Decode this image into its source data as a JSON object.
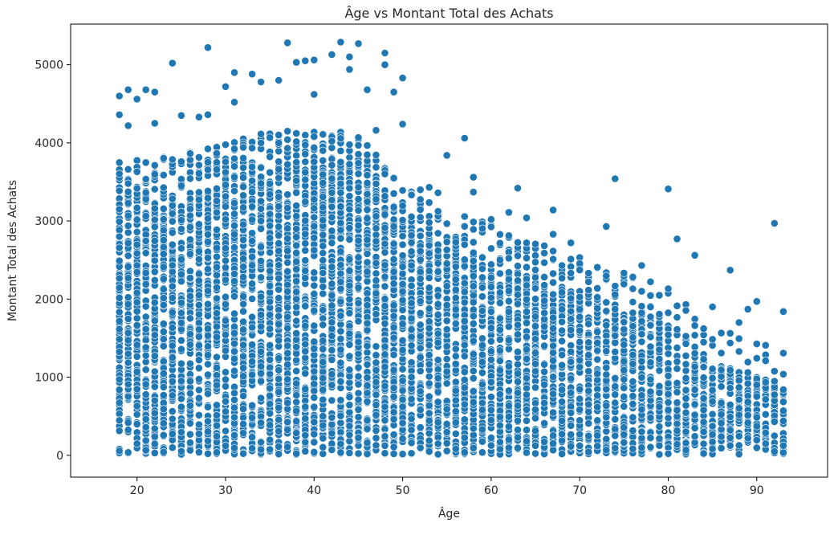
{
  "chart_data": {
    "type": "scatter",
    "title": "Âge vs Montant Total des Achats",
    "xlabel": "Âge",
    "ylabel": "Montant Total des Achats",
    "xlim": [
      12.5,
      98
    ],
    "ylim": [
      -280,
      5520
    ],
    "xticks": [
      20,
      30,
      40,
      50,
      60,
      70,
      80,
      90
    ],
    "yticks": [
      0,
      1000,
      2000,
      3000,
      4000,
      5000
    ],
    "grid": false,
    "legend": "none",
    "marker_color": "#1f77b4",
    "marker_edge_color": "#ffffff",
    "density_profile": [
      {
        "age": 18,
        "max_dense": 3300
      },
      {
        "age": 25,
        "max_dense": 3400
      },
      {
        "age": 35,
        "max_dense": 3700
      },
      {
        "age": 45,
        "max_dense": 3700
      },
      {
        "age": 50,
        "max_dense": 3000
      },
      {
        "age": 55,
        "max_dense": 2700
      },
      {
        "age": 60,
        "max_dense": 2500
      },
      {
        "age": 70,
        "max_dense": 2100
      },
      {
        "age": 80,
        "max_dense": 1700
      },
      {
        "age": 85,
        "max_dense": 1200
      },
      {
        "age": 93,
        "max_dense": 900
      }
    ],
    "outliers": [
      {
        "x": 18,
        "y": 4600
      },
      {
        "x": 18,
        "y": 4360
      },
      {
        "x": 19,
        "y": 4680
      },
      {
        "x": 19,
        "y": 4220
      },
      {
        "x": 20,
        "y": 4560
      },
      {
        "x": 21,
        "y": 4680
      },
      {
        "x": 22,
        "y": 4650
      },
      {
        "x": 22,
        "y": 4250
      },
      {
        "x": 24,
        "y": 5020
      },
      {
        "x": 25,
        "y": 4350
      },
      {
        "x": 27,
        "y": 4330
      },
      {
        "x": 28,
        "y": 5220
      },
      {
        "x": 28,
        "y": 4360
      },
      {
        "x": 30,
        "y": 4720
      },
      {
        "x": 31,
        "y": 4900
      },
      {
        "x": 31,
        "y": 4520
      },
      {
        "x": 33,
        "y": 4880
      },
      {
        "x": 34,
        "y": 4780
      },
      {
        "x": 36,
        "y": 4800
      },
      {
        "x": 37,
        "y": 5280
      },
      {
        "x": 38,
        "y": 5030
      },
      {
        "x": 39,
        "y": 5050
      },
      {
        "x": 40,
        "y": 5060
      },
      {
        "x": 40,
        "y": 4620
      },
      {
        "x": 42,
        "y": 5130
      },
      {
        "x": 43,
        "y": 5290
      },
      {
        "x": 44,
        "y": 5100
      },
      {
        "x": 44,
        "y": 4940
      },
      {
        "x": 45,
        "y": 5270
      },
      {
        "x": 46,
        "y": 4680
      },
      {
        "x": 48,
        "y": 5150
      },
      {
        "x": 48,
        "y": 5000
      },
      {
        "x": 49,
        "y": 4650
      },
      {
        "x": 50,
        "y": 4830
      },
      {
        "x": 50,
        "y": 4240
      },
      {
        "x": 47,
        "y": 4160
      },
      {
        "x": 52,
        "y": 3400
      },
      {
        "x": 53,
        "y": 3430
      },
      {
        "x": 54,
        "y": 3360
      },
      {
        "x": 55,
        "y": 3840
      },
      {
        "x": 57,
        "y": 4060
      },
      {
        "x": 58,
        "y": 3560
      },
      {
        "x": 58,
        "y": 3370
      },
      {
        "x": 60,
        "y": 3020
      },
      {
        "x": 62,
        "y": 3110
      },
      {
        "x": 63,
        "y": 3420
      },
      {
        "x": 64,
        "y": 3040
      },
      {
        "x": 67,
        "y": 3140
      },
      {
        "x": 67,
        "y": 2830
      },
      {
        "x": 69,
        "y": 2720
      },
      {
        "x": 73,
        "y": 2930
      },
      {
        "x": 74,
        "y": 3540
      },
      {
        "x": 77,
        "y": 2430
      },
      {
        "x": 80,
        "y": 3410
      },
      {
        "x": 81,
        "y": 2770
      },
      {
        "x": 83,
        "y": 2560
      },
      {
        "x": 85,
        "y": 1900
      },
      {
        "x": 87,
        "y": 2370
      },
      {
        "x": 88,
        "y": 1700
      },
      {
        "x": 89,
        "y": 1870
      },
      {
        "x": 90,
        "y": 1970
      },
      {
        "x": 91,
        "y": 1210
      },
      {
        "x": 92,
        "y": 2970
      },
      {
        "x": 92,
        "y": 250
      },
      {
        "x": 92,
        "y": 50
      },
      {
        "x": 93,
        "y": 1840
      },
      {
        "x": 93,
        "y": 840
      },
      {
        "x": 93,
        "y": 570
      }
    ]
  }
}
